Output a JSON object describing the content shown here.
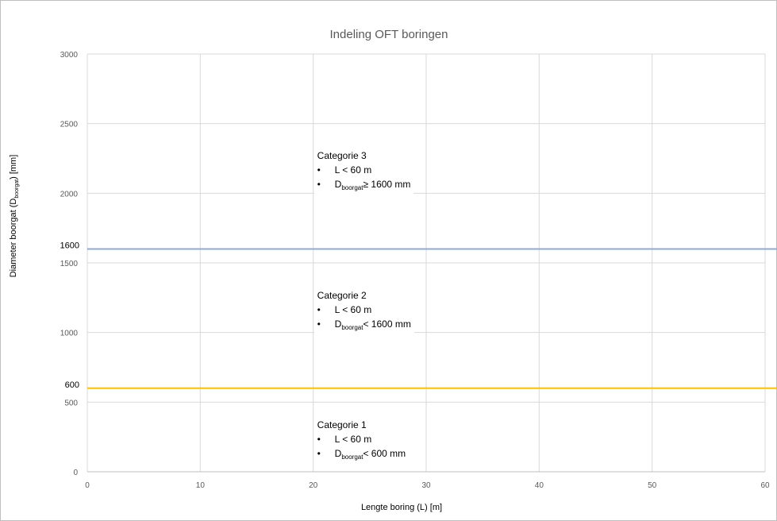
{
  "chart_data": {
    "type": "line",
    "title": "Indeling OFT boringen",
    "xlabel": "Lengte boring (L) [m]",
    "ylabel": {
      "main": "Diameter boorgat (D",
      "sub": "boorgat",
      "tail": ") [mm]"
    },
    "xlim": [
      0,
      60
    ],
    "ylim": [
      0,
      3000
    ],
    "x_ticks": [
      "0",
      "10",
      "20",
      "30",
      "40",
      "50",
      "60"
    ],
    "y_ticks": [
      "0",
      "500",
      "1000",
      "1500",
      "2000",
      "2500",
      "3000"
    ],
    "grid": true,
    "reference_lines": [
      {
        "y": 1600,
        "label": "1600",
        "color": "#8EA9DB"
      },
      {
        "y": 600,
        "label": "600",
        "color": "#FFC000"
      }
    ],
    "annotations": [
      {
        "title": "Categorie 3",
        "bullets": [
          {
            "text": "L < 60 m"
          },
          {
            "pre": "D",
            "sub": "boorgat",
            "post": "≥ 1600 mm"
          }
        ]
      },
      {
        "title": "Categorie 2",
        "bullets": [
          {
            "text": "L < 60 m"
          },
          {
            "pre": "D",
            "sub": "boorgat",
            "post": "< 1600 mm"
          }
        ]
      },
      {
        "title": "Categorie 1",
        "bullets": [
          {
            "text": "L < 60 m"
          },
          {
            "pre": "D",
            "sub": "boorgat",
            "post": "< 600 mm"
          }
        ]
      }
    ]
  }
}
